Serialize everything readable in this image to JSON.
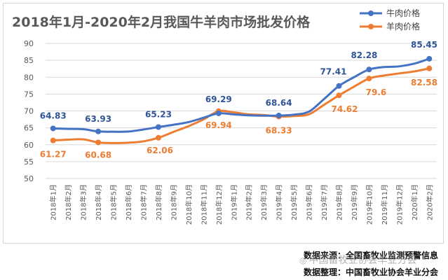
{
  "chart_data": {
    "type": "line",
    "title": "2018年1月-2020年2月我国牛羊肉市场批发价格",
    "categories": [
      "2018年1月",
      "2018年2月",
      "2018年3月",
      "2018年4月",
      "2018年5月",
      "2018年6月",
      "2018年7月",
      "2018年8月",
      "2018年9月",
      "2018年10月",
      "2018年11月",
      "2018年12月",
      "2019年1月",
      "2019年2月",
      "2019年3月",
      "2019年4月",
      "2019年5月",
      "2019年6月",
      "2019年7月",
      "2019年8月",
      "2019年9月",
      "2019年10月",
      "2019年11月",
      "2019年12月",
      "2020年1月",
      "2020年2月"
    ],
    "ylim": [
      50,
      90
    ],
    "yticks": [
      50,
      55,
      60,
      65,
      70,
      75,
      80,
      85,
      90
    ],
    "grid": true,
    "legend_position": "top-right",
    "series": [
      {
        "name": "牛肉价格",
        "color": "#4472C4",
        "label_color": "#2F5597",
        "values": [
          64.83,
          64.7,
          64.6,
          63.93,
          63.85,
          63.9,
          64.5,
          65.23,
          65.9,
          66.7,
          68.0,
          69.29,
          69.0,
          68.7,
          68.6,
          68.64,
          68.9,
          69.8,
          73.5,
          77.41,
          80.0,
          82.28,
          83.0,
          83.2,
          84.0,
          85.45
        ],
        "labels": {
          "0": "64.83",
          "3": "63.93",
          "7": "65.23",
          "11": "69.29",
          "15": "68.64",
          "19": "77.41",
          "21": "82.28",
          "25": "85.45"
        }
      },
      {
        "name": "羊肉价格",
        "color": "#ED7D31",
        "label_color": "#ED7D31",
        "values": [
          61.27,
          61.5,
          61.6,
          60.68,
          60.5,
          60.6,
          61.0,
          62.06,
          63.8,
          65.5,
          67.5,
          69.94,
          69.6,
          69.0,
          68.8,
          68.33,
          68.5,
          69.0,
          71.8,
          74.62,
          77.2,
          79.6,
          80.5,
          81.1,
          81.7,
          82.58
        ],
        "labels": {
          "0": "61.27",
          "3": "60.68",
          "7": "62.06",
          "11": "69.94",
          "15": "68.33",
          "19": "74.62",
          "21": "79.6",
          "25": "82.58"
        }
      }
    ]
  },
  "source": {
    "line1": "数据来源：全国畜牧业监测预警信息",
    "line2": "数据整理：中国畜牧业协会羊业分会"
  },
  "watermark": {
    "text": "中国畜牧业协会羊业分会",
    "icon": "wechat-icon"
  }
}
